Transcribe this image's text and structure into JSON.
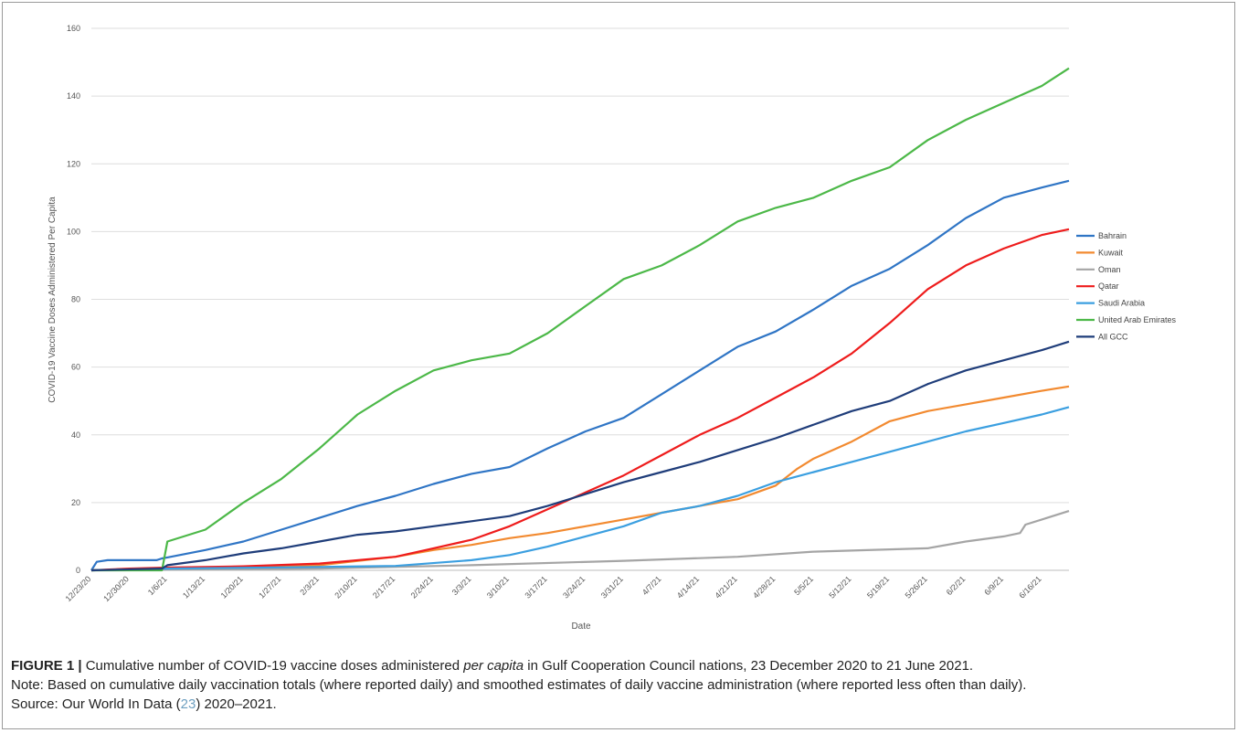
{
  "chart_data": {
    "type": "line",
    "title": "",
    "xlabel": "Date",
    "ylabel": "COVID-19 Vaccine Doses Administered Per Capita",
    "ylim": [
      0,
      160
    ],
    "yticks": [
      0,
      20,
      40,
      60,
      80,
      100,
      120,
      140,
      160
    ],
    "x_start": "12/23/20",
    "x_end": "6/21/21",
    "x_tick_labels": [
      "12/23/20",
      "12/30/20",
      "1/6/21",
      "1/13/21",
      "1/20/21",
      "1/27/21",
      "2/3/21",
      "2/10/21",
      "2/17/21",
      "2/24/21",
      "3/3/21",
      "3/10/21",
      "3/17/21",
      "3/24/21",
      "3/31/21",
      "4/7/21",
      "4/14/21",
      "4/21/21",
      "4/28/21",
      "5/5/21",
      "5/12/21",
      "5/19/21",
      "5/26/21",
      "6/2/21",
      "6/9/21",
      "6/16/21"
    ],
    "grid": "horizontal",
    "legend_position": "right",
    "series": [
      {
        "name": "Bahrain",
        "color": "#2f75c5",
        "points": [
          [
            "12/23/20",
            0
          ],
          [
            "12/24/20",
            2.5
          ],
          [
            "12/26/20",
            3
          ],
          [
            "1/4/21",
            3
          ],
          [
            "1/5/21",
            3.5
          ],
          [
            "1/6/21",
            3.8
          ],
          [
            "1/13/21",
            6
          ],
          [
            "1/20/21",
            8.5
          ],
          [
            "1/27/21",
            12
          ],
          [
            "2/3/21",
            15.5
          ],
          [
            "2/10/21",
            19
          ],
          [
            "2/17/21",
            22
          ],
          [
            "2/24/21",
            25.5
          ],
          [
            "3/3/21",
            28.5
          ],
          [
            "3/10/21",
            30.5
          ],
          [
            "3/17/21",
            36
          ],
          [
            "3/24/21",
            41
          ],
          [
            "3/31/21",
            45
          ],
          [
            "4/7/21",
            52
          ],
          [
            "4/14/21",
            59
          ],
          [
            "4/21/21",
            66
          ],
          [
            "4/28/21",
            70.5
          ],
          [
            "5/5/21",
            77
          ],
          [
            "5/12/21",
            84
          ],
          [
            "5/19/21",
            89
          ],
          [
            "5/26/21",
            96
          ],
          [
            "6/2/21",
            104
          ],
          [
            "6/9/21",
            110
          ],
          [
            "6/16/21",
            113
          ],
          [
            "6/21/21",
            115
          ]
        ]
      },
      {
        "name": "Kuwait",
        "color": "#f28a30",
        "points": [
          [
            "12/23/20",
            0
          ],
          [
            "1/6/21",
            0.5
          ],
          [
            "1/20/21",
            1
          ],
          [
            "2/3/21",
            1.5
          ],
          [
            "2/17/21",
            4
          ],
          [
            "2/24/21",
            6
          ],
          [
            "3/3/21",
            7.5
          ],
          [
            "3/10/21",
            9.5
          ],
          [
            "3/17/21",
            11
          ],
          [
            "3/24/21",
            13
          ],
          [
            "3/31/21",
            15
          ],
          [
            "4/7/21",
            17
          ],
          [
            "4/14/21",
            19
          ],
          [
            "4/21/21",
            21
          ],
          [
            "4/28/21",
            25
          ],
          [
            "5/2/21",
            30
          ],
          [
            "5/5/21",
            33
          ],
          [
            "5/12/21",
            38
          ],
          [
            "5/19/21",
            44
          ],
          [
            "5/26/21",
            47
          ],
          [
            "6/2/21",
            49
          ],
          [
            "6/9/21",
            51
          ],
          [
            "6/16/21",
            53
          ],
          [
            "6/21/21",
            54.3
          ]
        ]
      },
      {
        "name": "Oman",
        "color": "#a5a5a5",
        "points": [
          [
            "12/23/20",
            0
          ],
          [
            "1/6/21",
            0.2
          ],
          [
            "2/3/21",
            0.5
          ],
          [
            "3/3/21",
            1.5
          ],
          [
            "3/31/21",
            2.8
          ],
          [
            "4/21/21",
            4
          ],
          [
            "5/5/21",
            5.5
          ],
          [
            "5/26/21",
            6.5
          ],
          [
            "6/2/21",
            8.5
          ],
          [
            "6/9/21",
            10
          ],
          [
            "6/12/21",
            11
          ],
          [
            "6/13/21",
            13.5
          ],
          [
            "6/16/21",
            15
          ],
          [
            "6/21/21",
            17.5
          ]
        ]
      },
      {
        "name": "Qatar",
        "color": "#ee1c1c",
        "points": [
          [
            "12/23/20",
            0
          ],
          [
            "12/30/20",
            0.5
          ],
          [
            "1/6/21",
            0.8
          ],
          [
            "1/20/21",
            1.2
          ],
          [
            "2/3/21",
            2
          ],
          [
            "2/17/21",
            4
          ],
          [
            "2/24/21",
            6.5
          ],
          [
            "3/3/21",
            9
          ],
          [
            "3/10/21",
            13
          ],
          [
            "3/17/21",
            18
          ],
          [
            "3/24/21",
            23
          ],
          [
            "3/31/21",
            28
          ],
          [
            "4/7/21",
            34
          ],
          [
            "4/14/21",
            40
          ],
          [
            "4/21/21",
            45
          ],
          [
            "4/28/21",
            51
          ],
          [
            "5/5/21",
            57
          ],
          [
            "5/12/21",
            64
          ],
          [
            "5/19/21",
            73
          ],
          [
            "5/26/21",
            83
          ],
          [
            "6/2/21",
            90
          ],
          [
            "6/9/21",
            95
          ],
          [
            "6/16/21",
            99
          ],
          [
            "6/21/21",
            100.7
          ]
        ]
      },
      {
        "name": "Saudi Arabia",
        "color": "#3b9fe0",
        "points": [
          [
            "12/23/20",
            0
          ],
          [
            "1/6/21",
            0.5
          ],
          [
            "2/3/21",
            1
          ],
          [
            "2/17/21",
            1.3
          ],
          [
            "3/3/21",
            3
          ],
          [
            "3/10/21",
            4.5
          ],
          [
            "3/17/21",
            7
          ],
          [
            "3/24/21",
            10
          ],
          [
            "3/31/21",
            13
          ],
          [
            "4/7/21",
            17
          ],
          [
            "4/14/21",
            19
          ],
          [
            "4/21/21",
            22
          ],
          [
            "4/28/21",
            26
          ],
          [
            "5/5/21",
            29
          ],
          [
            "5/12/21",
            32
          ],
          [
            "5/19/21",
            35
          ],
          [
            "5/26/21",
            38
          ],
          [
            "6/2/21",
            41
          ],
          [
            "6/9/21",
            43.5
          ],
          [
            "6/16/21",
            46
          ],
          [
            "6/21/21",
            48.2
          ]
        ]
      },
      {
        "name": "United Arab Emirates",
        "color": "#4cb848",
        "points": [
          [
            "12/23/20",
            0
          ],
          [
            "1/5/21",
            0
          ],
          [
            "1/6/21",
            8.5
          ],
          [
            "1/13/21",
            12
          ],
          [
            "1/20/21",
            20
          ],
          [
            "1/27/21",
            27
          ],
          [
            "2/3/21",
            36
          ],
          [
            "2/10/21",
            46
          ],
          [
            "2/17/21",
            53
          ],
          [
            "2/24/21",
            59
          ],
          [
            "3/3/21",
            62
          ],
          [
            "3/10/21",
            64
          ],
          [
            "3/17/21",
            70
          ],
          [
            "3/24/21",
            78
          ],
          [
            "3/31/21",
            86
          ],
          [
            "4/7/21",
            90
          ],
          [
            "4/14/21",
            96
          ],
          [
            "4/21/21",
            103
          ],
          [
            "4/28/21",
            107
          ],
          [
            "5/5/21",
            110
          ],
          [
            "5/12/21",
            115
          ],
          [
            "5/19/21",
            119
          ],
          [
            "5/26/21",
            127
          ],
          [
            "6/2/21",
            133
          ],
          [
            "6/9/21",
            138
          ],
          [
            "6/16/21",
            143
          ],
          [
            "6/21/21",
            148.2
          ]
        ]
      },
      {
        "name": "All GCC",
        "color": "#1f3d7a",
        "points": [
          [
            "12/23/20",
            0
          ],
          [
            "1/5/21",
            0.5
          ],
          [
            "1/6/21",
            1.5
          ],
          [
            "1/13/21",
            3
          ],
          [
            "1/20/21",
            5
          ],
          [
            "1/27/21",
            6.5
          ],
          [
            "2/3/21",
            8.5
          ],
          [
            "2/10/21",
            10.5
          ],
          [
            "2/17/21",
            11.5
          ],
          [
            "2/24/21",
            13
          ],
          [
            "3/3/21",
            14.5
          ],
          [
            "3/10/21",
            16
          ],
          [
            "3/17/21",
            19
          ],
          [
            "3/24/21",
            22.5
          ],
          [
            "3/31/21",
            26
          ],
          [
            "4/7/21",
            29
          ],
          [
            "4/14/21",
            32
          ],
          [
            "4/21/21",
            35.5
          ],
          [
            "4/28/21",
            39
          ],
          [
            "5/5/21",
            43
          ],
          [
            "5/12/21",
            47
          ],
          [
            "5/19/21",
            50
          ],
          [
            "5/26/21",
            55
          ],
          [
            "6/2/21",
            59
          ],
          [
            "6/9/21",
            62
          ],
          [
            "6/16/21",
            65
          ],
          [
            "6/21/21",
            67.5
          ]
        ]
      }
    ]
  },
  "caption": {
    "label": "FIGURE 1 |",
    "text_part1": " Cumulative number of COVID-19 vaccine doses administered ",
    "text_italic": "per capita",
    "text_part2": " in Gulf Cooperation Council nations, 23 December 2020 to 21 June 2021.",
    "note": "Note: Based on cumulative daily vaccination totals (where reported daily) and smoothed estimates of daily vaccine administration (where reported less often than daily).",
    "source_prefix": "Source: Our World In Data (",
    "source_ref": "23",
    "source_suffix": ") 2020–2021."
  }
}
